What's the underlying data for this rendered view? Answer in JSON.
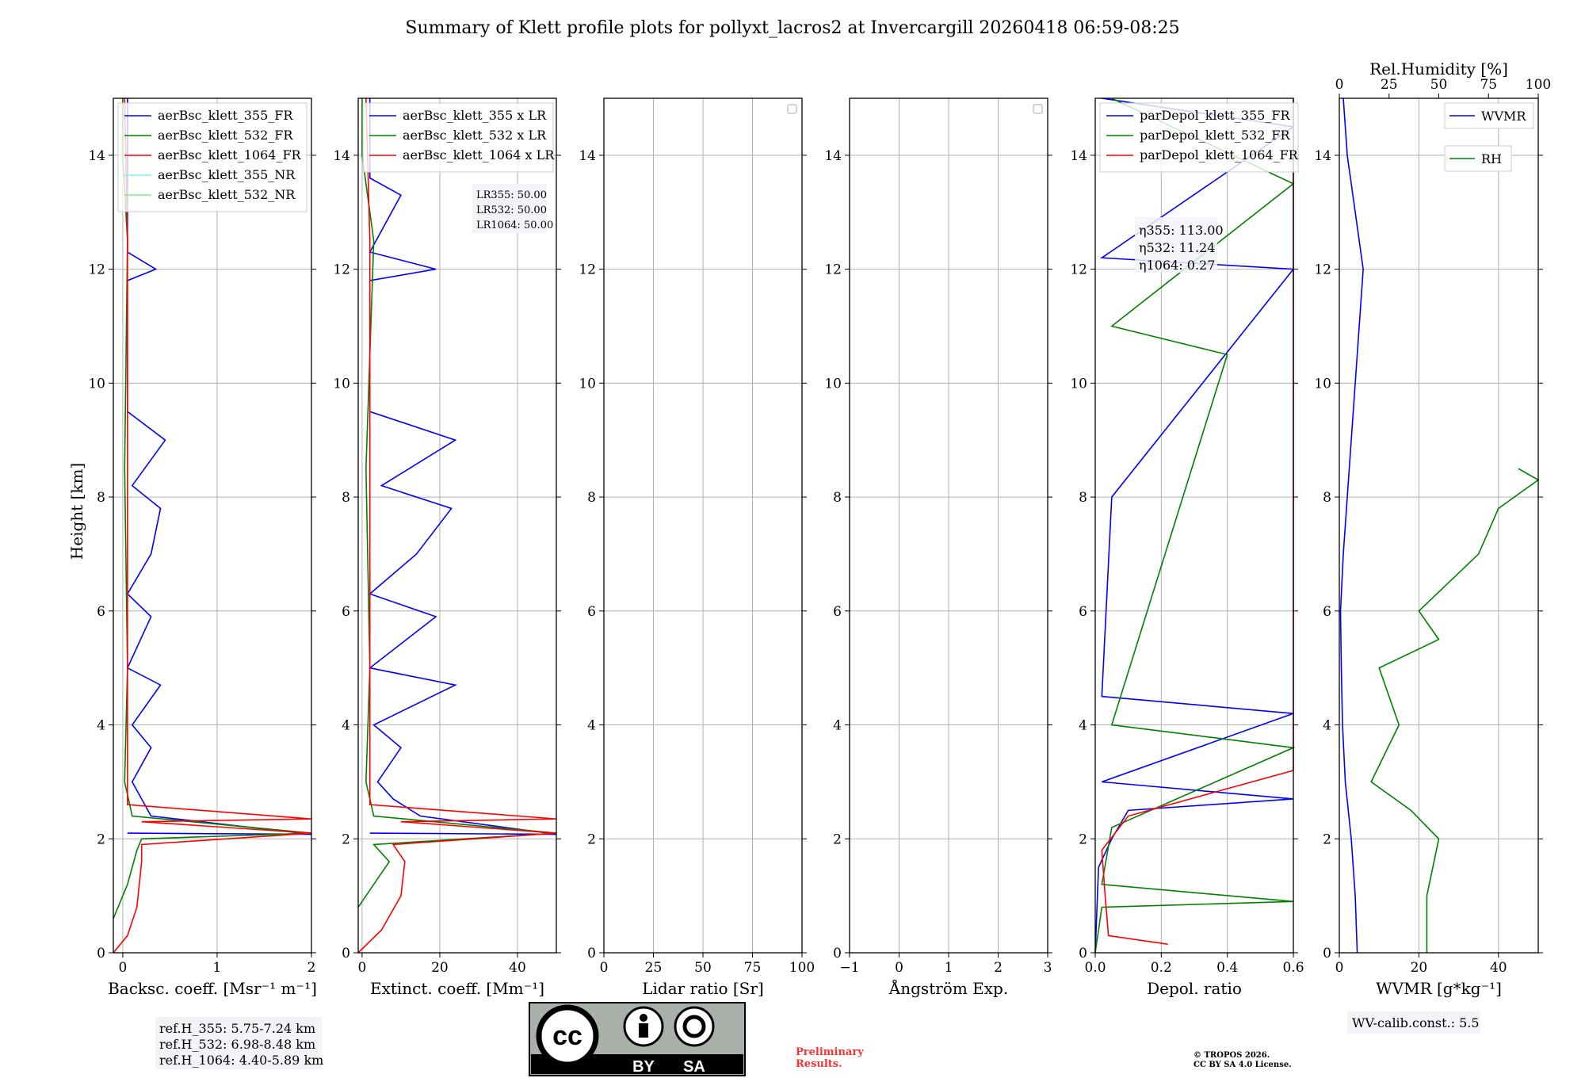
{
  "title": "Summary of Klett profile plots for pollyxt_lacros2 at Invercargill 20260418 06:59-08:25",
  "y_axis_label": "Height [km]",
  "colors": {
    "c355": "#0000ff",
    "c532": "#008000",
    "c1064": "#ff0000",
    "c355nr": "#7ff0f0",
    "c532nr": "#7ff07f",
    "wvmr": "#0000ff",
    "rh": "#008000"
  },
  "chart_data": [
    {
      "type": "line",
      "id": "bsc",
      "xlabel": "Backsc. coeff. [Msr⁻¹ m⁻¹]",
      "ylabel": "Height [km]",
      "xlim": [
        -0.1,
        2
      ],
      "ylim": [
        0,
        15
      ],
      "xticks": [
        0,
        1,
        2
      ],
      "yticks": [
        0,
        2,
        4,
        6,
        8,
        10,
        12,
        14
      ],
      "legend": [
        "aerBsc_klett_355_FR",
        "aerBsc_klett_532_FR",
        "aerBsc_klett_1064_FR",
        "aerBsc_klett_355_NR",
        "aerBsc_klett_532_NR"
      ],
      "series": [
        {
          "name": "aerBsc_klett_355_FR",
          "color": "#0000ff",
          "points": [
            [
              0.05,
              2.1
            ],
            [
              2,
              2.08
            ],
            [
              0.3,
              2.4
            ],
            [
              0.2,
              2.7
            ],
            [
              0.1,
              3.0
            ],
            [
              0.3,
              3.6
            ],
            [
              0.1,
              4.0
            ],
            [
              0.4,
              4.7
            ],
            [
              0.05,
              5.0
            ],
            [
              0.3,
              5.9
            ],
            [
              0.05,
              6.3
            ],
            [
              0.3,
              7.0
            ],
            [
              0.4,
              7.8
            ],
            [
              0.1,
              8.2
            ],
            [
              0.45,
              9.0
            ],
            [
              0.05,
              9.5
            ],
            [
              0.05,
              11.8
            ],
            [
              0.35,
              12.0
            ],
            [
              0.05,
              12.3
            ],
            [
              0.05,
              15
            ]
          ]
        },
        {
          "name": "aerBsc_klett_532_FR",
          "color": "#008000",
          "points": [
            [
              -0.1,
              0.6
            ],
            [
              0.05,
              1.2
            ],
            [
              0.15,
              1.8
            ],
            [
              0.2,
              2.0
            ],
            [
              2,
              2.1
            ],
            [
              0.1,
              2.4
            ],
            [
              0.02,
              3.0
            ],
            [
              0.05,
              5.0
            ],
            [
              0.02,
              8.5
            ],
            [
              0.05,
              12.5
            ],
            [
              0.0,
              14.0
            ],
            [
              0.0,
              15
            ]
          ]
        },
        {
          "name": "aerBsc_klett_1064_FR",
          "color": "#ff0000",
          "points": [
            [
              -0.1,
              0.0
            ],
            [
              0.05,
              0.3
            ],
            [
              0.15,
              0.8
            ],
            [
              0.2,
              1.6
            ],
            [
              0.2,
              1.9
            ],
            [
              2,
              2.1
            ],
            [
              0.2,
              2.3
            ],
            [
              2,
              2.35
            ],
            [
              0.05,
              2.6
            ],
            [
              0.05,
              5.0
            ],
            [
              0.05,
              8.5
            ],
            [
              0.05,
              12.5
            ],
            [
              0.02,
              15
            ]
          ]
        }
      ],
      "annotations": [
        "ref.H_355: 5.75-7.24 km",
        "ref.H_532: 6.98-8.48 km",
        "ref.H_1064: 4.40-5.89 km"
      ]
    },
    {
      "type": "line",
      "id": "ext",
      "xlabel": "Extinct. coeff. [Mm⁻¹]",
      "xlim": [
        -1,
        50
      ],
      "ylim": [
        0,
        15
      ],
      "xticks": [
        0,
        20,
        40
      ],
      "yticks": [
        0,
        2,
        4,
        6,
        8,
        10,
        12,
        14
      ],
      "legend": [
        "aerBsc_klett_355 x LR",
        "aerBsc_klett_532 x LR",
        "aerBsc_klett_1064 x LR"
      ],
      "annotations": [
        "LR355: 50.00",
        "LR532: 50.00",
        "LR1064: 50.00"
      ],
      "series": [
        {
          "name": "aerBsc_klett_355 x LR",
          "color": "#0000ff",
          "points": [
            [
              2,
              2.1
            ],
            [
              50,
              2.08
            ],
            [
              15,
              2.4
            ],
            [
              8,
              2.7
            ],
            [
              4,
              3.0
            ],
            [
              10,
              3.6
            ],
            [
              3,
              4.0
            ],
            [
              24,
              4.7
            ],
            [
              2,
              5.0
            ],
            [
              19,
              5.9
            ],
            [
              2,
              6.3
            ],
            [
              14,
              7.0
            ],
            [
              23,
              7.8
            ],
            [
              5,
              8.2
            ],
            [
              24,
              9.0
            ],
            [
              2,
              9.5
            ],
            [
              2,
              11.8
            ],
            [
              19,
              12.0
            ],
            [
              2,
              12.3
            ],
            [
              10,
              13.3
            ],
            [
              2,
              13.6
            ],
            [
              2,
              15
            ]
          ]
        },
        {
          "name": "aerBsc_klett_532 x LR",
          "color": "#008000",
          "points": [
            [
              -1,
              0.8
            ],
            [
              4,
              1.3
            ],
            [
              7,
              1.6
            ],
            [
              3,
              1.9
            ],
            [
              50,
              2.1
            ],
            [
              3,
              2.4
            ],
            [
              1,
              3.0
            ],
            [
              2,
              5.0
            ],
            [
              1,
              8.5
            ],
            [
              3,
              12.5
            ],
            [
              0,
              14.0
            ],
            [
              0,
              15
            ]
          ]
        },
        {
          "name": "aerBsc_klett_1064 x LR",
          "color": "#ff0000",
          "points": [
            [
              -1,
              0.0
            ],
            [
              5,
              0.4
            ],
            [
              10,
              1.0
            ],
            [
              11,
              1.6
            ],
            [
              8,
              1.9
            ],
            [
              50,
              2.1
            ],
            [
              10,
              2.3
            ],
            [
              50,
              2.35
            ],
            [
              2,
              2.6
            ],
            [
              2,
              5.0
            ],
            [
              2,
              8.5
            ],
            [
              2,
              12.5
            ],
            [
              1,
              15
            ]
          ]
        }
      ]
    },
    {
      "type": "line",
      "id": "lr",
      "xlabel": "Lidar ratio [Sr]",
      "xlim": [
        0,
        100
      ],
      "ylim": [
        0,
        15
      ],
      "xticks": [
        0,
        25,
        50,
        75,
        100
      ],
      "yticks": [
        0,
        2,
        4,
        6,
        8,
        10,
        12,
        14
      ],
      "series": []
    },
    {
      "type": "line",
      "id": "ang",
      "xlabel": "Ångström Exp.",
      "xlim": [
        -1,
        3
      ],
      "ylim": [
        0,
        15
      ],
      "xticks": [
        -1,
        0,
        1,
        2,
        3
      ],
      "yticks": [
        0,
        2,
        4,
        6,
        8,
        10,
        12,
        14
      ],
      "series": []
    },
    {
      "type": "line",
      "id": "depol",
      "xlabel": "Depol. ratio",
      "xlim": [
        0,
        0.6
      ],
      "ylim": [
        0,
        15
      ],
      "xticks": [
        0.0,
        0.2,
        0.4,
        0.6
      ],
      "yticks": [
        0,
        2,
        4,
        6,
        8,
        10,
        12,
        14
      ],
      "legend": [
        "parDepol_klett_355_FR",
        "parDepol_klett_532_FR",
        "parDepol_klett_1064_FR"
      ],
      "annotations": [
        "η355: 113.00",
        "η532: 11.24",
        "η1064: 0.27"
      ],
      "series": [
        {
          "name": "parDepol_klett_355_FR",
          "color": "#0000ff",
          "points": [
            [
              0.0,
              0.0
            ],
            [
              0.01,
              1.5
            ],
            [
              0.05,
              2.0
            ],
            [
              0.1,
              2.5
            ],
            [
              0.6,
              2.7
            ],
            [
              0.02,
              3.0
            ],
            [
              0.6,
              4.2
            ],
            [
              0.02,
              4.5
            ],
            [
              0.05,
              8.0
            ],
            [
              0.6,
              12.0
            ],
            [
              0.02,
              12.2
            ],
            [
              0.6,
              14.5
            ],
            [
              0.02,
              15
            ]
          ]
        },
        {
          "name": "parDepol_klett_532_FR",
          "color": "#008000",
          "points": [
            [
              0.0,
              0.0
            ],
            [
              0.02,
              0.8
            ],
            [
              0.6,
              0.9
            ],
            [
              0.02,
              1.2
            ],
            [
              0.05,
              2.2
            ],
            [
              0.6,
              3.6
            ],
            [
              0.05,
              4.0
            ],
            [
              0.4,
              10.5
            ],
            [
              0.05,
              11.0
            ],
            [
              0.6,
              13.5
            ],
            [
              0.05,
              15
            ]
          ]
        },
        {
          "name": "parDepol_klett_1064_FR",
          "color": "#ff0000",
          "points": [
            [
              0.22,
              0.15
            ],
            [
              0.04,
              0.3
            ],
            [
              0.03,
              1.0
            ],
            [
              0.02,
              1.8
            ],
            [
              0.1,
              2.4
            ],
            [
              0.6,
              3.2
            ],
            [
              0.6,
              6.0
            ],
            [
              0.6,
              8.0
            ],
            [
              0.6,
              12.3
            ],
            [
              0.6,
              15
            ]
          ]
        }
      ]
    },
    {
      "type": "line",
      "id": "wv",
      "xlabel": "WVMR [g*kg⁻¹]",
      "top_xlabel": "Rel.Humidity [%]",
      "xlim": [
        0,
        50
      ],
      "ylim": [
        0,
        15
      ],
      "xticks": [
        0,
        20,
        40
      ],
      "top_xlim": [
        0,
        100
      ],
      "top_xticks": [
        0,
        25,
        50,
        75,
        100
      ],
      "yticks": [
        0,
        2,
        4,
        6,
        8,
        10,
        12,
        14
      ],
      "legend": [
        "WVMR",
        "RH"
      ],
      "annotations": [
        "WV-calib.const.: 5.5"
      ],
      "series": [
        {
          "name": "WVMR",
          "color": "#0000ff",
          "points": [
            [
              4.5,
              0
            ],
            [
              4,
              1
            ],
            [
              3,
              2
            ],
            [
              1.5,
              3
            ],
            [
              0.8,
              4
            ],
            [
              0.5,
              5
            ],
            [
              0.3,
              6
            ],
            [
              1,
              7
            ],
            [
              2,
              8
            ],
            [
              3,
              9
            ],
            [
              4,
              10
            ],
            [
              5,
              11
            ],
            [
              6,
              12
            ],
            [
              4,
              13
            ],
            [
              2,
              14
            ],
            [
              1,
              15
            ]
          ]
        },
        {
          "name": "RH",
          "color": "#008000",
          "points": [
            [
              22,
              0
            ],
            [
              22,
              1
            ],
            [
              25,
              2
            ],
            [
              18,
              2.5
            ],
            [
              8,
              3
            ],
            [
              15,
              4
            ],
            [
              10,
              5
            ],
            [
              25,
              5.5
            ],
            [
              20,
              6
            ],
            [
              35,
              7
            ],
            [
              40,
              7.8
            ],
            [
              50,
              8.3
            ],
            [
              45,
              8.5
            ]
          ]
        }
      ]
    }
  ],
  "preliminary": "Preliminary\nResults.",
  "preliminary_line1": "Preliminary",
  "preliminary_line2": "Results.",
  "copyright_line1": "© TROPOS 2026.",
  "copyright_line2": "CC BY SA 4.0 License.",
  "license_badge": {
    "by": "BY",
    "sa": "SA",
    "cc": "cc"
  }
}
